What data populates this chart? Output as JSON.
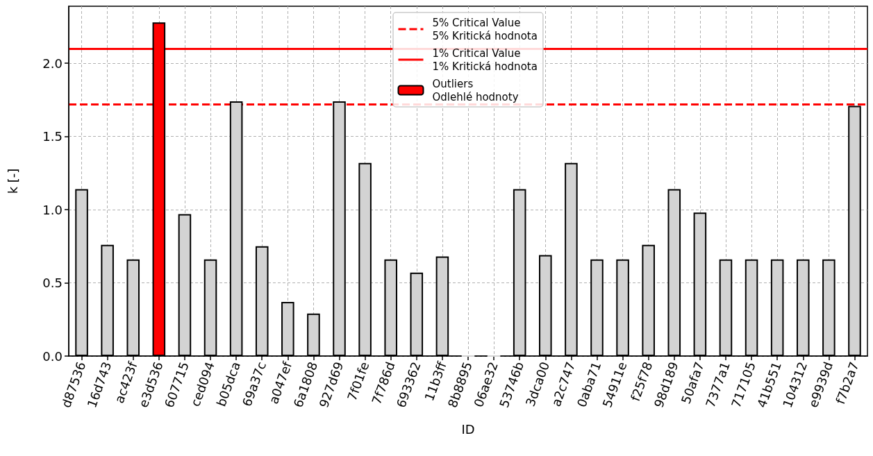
{
  "chart_data": {
    "type": "bar",
    "xlabel": "ID",
    "ylabel": "k [-]",
    "categories": [
      "d87536",
      "16d743",
      "ac423f",
      "e3d536",
      "607715",
      "ced094",
      "b05dca",
      "69a37c",
      "a047ef",
      "6a1808",
      "927d69",
      "7f01fe",
      "7f786d",
      "693362",
      "11b3ff",
      "8b8895",
      "06ae32",
      "53746b",
      "3dca00",
      "a2c747",
      "0aba71",
      "54911e",
      "f25f78",
      "98d189",
      "50afa7",
      "7377a1",
      "717105",
      "41b551",
      "104312",
      "e9939d",
      "f7b2a7"
    ],
    "series": [
      {
        "color": "#d3d3d3",
        "values": [
          1.14,
          0.76,
          0.66,
          null,
          0.97,
          0.66,
          1.74,
          0.75,
          0.37,
          0.29,
          1.74,
          1.32,
          0.66,
          0.57,
          0.68,
          0,
          0,
          1.14,
          0.69,
          1.32,
          0.66,
          0.66,
          0.76,
          1.14,
          0.98,
          0.66,
          0.66,
          0.66,
          0.66,
          0.66,
          1.71
        ]
      },
      {
        "name": "Outliers\nOdlehlé hodnoty",
        "color": "#ff0000",
        "values": [
          null,
          null,
          null,
          2.28,
          null,
          null,
          null,
          null,
          null,
          null,
          null,
          null,
          null,
          null,
          null,
          null,
          null,
          null,
          null,
          null,
          null,
          null,
          null,
          null,
          null,
          null,
          null,
          null,
          null,
          null,
          null
        ]
      }
    ],
    "ylim": [
      0,
      2.39
    ],
    "yticks": [
      {
        "value": 0,
        "label": "0.0"
      },
      {
        "value": 0.5,
        "label": "0.5"
      },
      {
        "value": 1,
        "label": "1.0"
      },
      {
        "value": 1.5,
        "label": "1.5"
      },
      {
        "value": 2,
        "label": "2.0"
      }
    ],
    "ref_lines": [
      {
        "axis": "y",
        "value": 1.72,
        "label": "5% Critical Value\n5% Kritická hodnota",
        "color": "#ff0000",
        "line_style": "dashed"
      },
      {
        "axis": "y",
        "value": 2.1,
        "label": "1% Critical Value\n1% Kritická hodnota",
        "color": "#ff0000",
        "line_style": "solid"
      }
    ],
    "grid": true,
    "legend": "top"
  }
}
